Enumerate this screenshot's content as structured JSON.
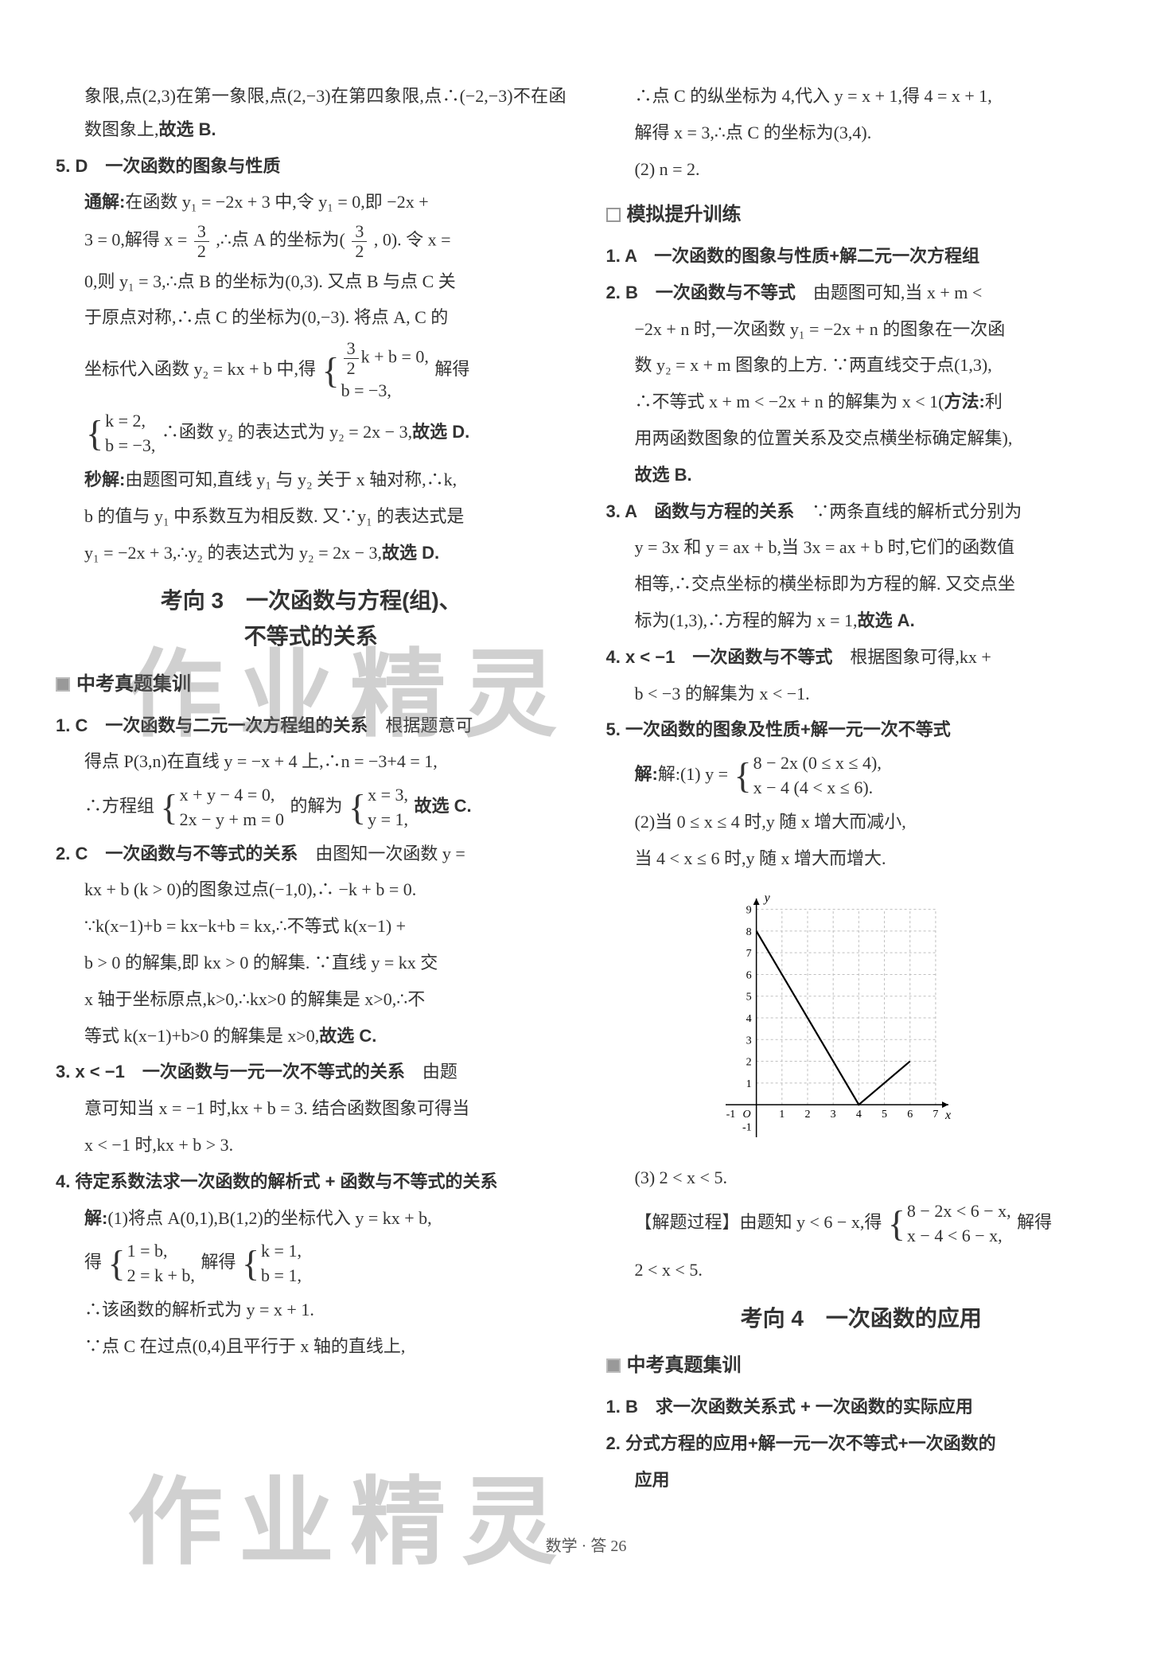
{
  "left": {
    "p1": "象限,点(2,3)在第一象限,点(2,−3)在第四象限,点∴(−2,−3)不在函数图象上,",
    "p1b": "故选 B.",
    "q5_head": "5. D　一次函数的图象与性质",
    "q5_a": "通解:在函数 y₁ = −2x + 3 中,令 y₁ = 0,即 −2x +",
    "q5_b_pre": "3 = 0,解得 x = ",
    "frac_3_2_a_num": "3",
    "frac_3_2_a_den": "2",
    "q5_b_mid": ",∴点 A 的坐标为(",
    "frac_3_2_b_num": "3",
    "frac_3_2_b_den": "2",
    "q5_b_post": ", 0). 令 x =",
    "q5_c": "0,则 y₁ = 3,∴点 B 的坐标为(0,3). 又点 B 与点 C 关",
    "q5_d": "于原点对称,∴点 C 的坐标为(0,−3). 将点 A, C 的",
    "q5_e_pre": "坐标代入函数 y₂ = kx + b 中,得",
    "sys1_l1_pre": "",
    "sys1_l1_frac_num": "3",
    "sys1_l1_frac_den": "2",
    "sys1_l1_post": "k + b = 0,",
    "sys1_l2": "b = −3,",
    "q5_e_post": "解得",
    "sys2_l1": "k = 2,",
    "sys2_l2": "b = −3,",
    "q5_f": "∴函数 y₂ 的表达式为 y₂ = 2x − 3,",
    "q5_f_bold": "故选 D.",
    "q5_g": "秒解:由题图可知,直线 y₁ 与 y₂ 关于 x 轴对称,∴k,",
    "q5_h": "b 的值与 y₁ 中系数互为相反数. 又∵y₁ 的表达式是",
    "q5_i": "y₁ = −2x + 3,∴y₂ 的表达式为 y₂ = 2x − 3,",
    "q5_i_bold": "故选 D.",
    "kx3_title_l1": "考向 3　一次函数与方程(组)、",
    "kx3_title_l2": "不等式的关系",
    "sec_zj": "中考真题集训",
    "z1_head": "1. C　一次函数与二元一次方程组的关系",
    "z1_a": "根据题意可",
    "z1_b": "得点 P(3,n)在直线 y = −x + 4 上,∴n = −3+4 = 1,",
    "z1_c_pre": "∴方程组",
    "z1_sys_l1": "x + y − 4 = 0,",
    "z1_sys_l2": "2x − y + m = 0",
    "z1_c_mid": "的解为",
    "z1_sys2_l1": "x = 3,",
    "z1_sys2_l2": "y = 1,",
    "z1_c_bold": "故选 C.",
    "z2_head": "2. C　一次函数与不等式的关系",
    "z2_a": "由图知一次函数 y =",
    "z2_b": "kx + b (k > 0)的图象过点(−1,0),∴ −k + b = 0.",
    "z2_c": "∵k(x−1)+b = kx−k+b = kx,∴不等式 k(x−1) +",
    "z2_d": "b > 0 的解集,即 kx > 0 的解集. ∵直线 y = kx 交",
    "z2_e": "x 轴于坐标原点,k>0,∴kx>0 的解集是 x>0,∴不",
    "z2_f": "等式 k(x−1)+b>0 的解集是 x>0,",
    "z2_f_bold": "故选 C.",
    "z3_head": "3. x < −1　一次函数与一元一次不等式的关系",
    "z3_a": "由题",
    "z3_b": "意可知当 x = −1 时,kx + b = 3. 结合函数图象可得当",
    "z3_c": "x < −1 时,kx + b > 3.",
    "z4_head": "4. 待定系数法求一次函数的解析式 + 函数与不等式的关系",
    "z4_a": "解:(1)将点 A(0,1),B(1,2)的坐标代入 y = kx + b,",
    "z4_b_pre": "得",
    "z4_sys_l1": "1 = b,",
    "z4_sys_l2": "2 = k + b,",
    "z4_b_mid": "解得",
    "z4_sys2_l1": "k = 1,",
    "z4_sys2_l2": "b = 1,",
    "z4_c": "∴该函数的解析式为 y = x + 1.",
    "z4_d": "∵点 C 在过点(0,4)且平行于 x 轴的直线上,"
  },
  "right": {
    "r1": "∴点 C 的纵坐标为 4,代入 y = x + 1,得 4 = x + 1,",
    "r2": "解得 x = 3,∴点 C 的坐标为(3,4).",
    "r3": "(2) n = 2.",
    "sec_mn": "模拟提升训练",
    "m1_head": "1. A　一次函数的图象与性质+解二元一次方程组",
    "m2_head": "2. B　一次函数与不等式",
    "m2_a": "由题图可知,当 x + m <",
    "m2_b": "−2x + n 时,一次函数 y₁ = −2x + n 的图象在一次函",
    "m2_c": "数 y₂ = x + m 图象的上方. ∵两直线交于点(1,3),",
    "m2_d": "∴不等式 x + m < −2x + n 的解集为 x < 1(",
    "m2_d_bold": "方法:",
    "m2_d2": "利",
    "m2_e": "用两函数图象的位置关系及交点横坐标确定解集),",
    "m2_f_bold": "故选 B.",
    "m3_head": "3. A　函数与方程的关系",
    "m3_a": "∵两条直线的解析式分别为",
    "m3_b": "y = 3x 和 y = ax + b,当 3x = ax + b 时,它们的函数值",
    "m3_c": "相等,∴交点坐标的横坐标即为方程的解. 又交点坐",
    "m3_d": "标为(1,3),∴方程的解为 x = 1,",
    "m3_d_bold": "故选 A.",
    "m4_head": "4. x < −1　一次函数与不等式",
    "m4_a": "根据图象可得,kx +",
    "m4_b": "b < −3 的解集为 x < −1.",
    "m5_head": "5. 一次函数的图象及性质+解一元一次不等式",
    "m5_a_pre": "解:(1) y =",
    "m5_sys_l1": "8 − 2x (0 ≤ x ≤ 4),",
    "m5_sys_l2": "x − 4 (4 < x ≤ 6).",
    "m5_b": "(2)当 0 ≤ x ≤ 4 时,y 随 x 增大而减小,",
    "m5_c": "当 4 < x ≤ 6 时,y 随 x 增大而增大.",
    "chart": {
      "type": "line",
      "x_ticks": [
        -1,
        0,
        1,
        2,
        3,
        4,
        5,
        6,
        7
      ],
      "y_ticks": [
        -1,
        0,
        1,
        2,
        3,
        4,
        5,
        6,
        7,
        8,
        9
      ],
      "xlim": [
        -1.2,
        7.5
      ],
      "ylim": [
        -1.5,
        9.5
      ],
      "grid_color": "#bfbfbf",
      "axis_color": "#000000",
      "line_color": "#000000",
      "line_width": 2.2,
      "background": "#ffffff",
      "tick_fontsize": 14,
      "label_y": "y",
      "label_x": "x",
      "origin_label": "O",
      "points": [
        [
          0,
          8
        ],
        [
          4,
          0
        ],
        [
          6,
          2
        ]
      ]
    },
    "m5_d": "(3) 2 < x < 5.",
    "m5_e_pre": "【解题过程】由题知 y < 6 − x,得",
    "m5_sys2_l1": "8 − 2x < 6 − x,",
    "m5_sys2_l2": "x − 4 < 6 − x,",
    "m5_e_post": "解得",
    "m5_f": "2 < x < 5.",
    "kx4_title": "考向 4　一次函数的应用",
    "sec_zj2": "中考真题集训",
    "k4_1": "1. B　求一次函数关系式 + 一次函数的实际应用",
    "k4_2a": "2. 分式方程的应用+解一元一次不等式+一次函数的",
    "k4_2b": "应用"
  },
  "footer": "数学 · 答 26",
  "watermarks": {
    "w1": "作业精灵",
    "w2": "作业精灵"
  },
  "colors": {
    "text": "#333333",
    "bold": "#000000",
    "grid": "#bfbfbf",
    "watermark": "rgba(120,120,120,0.35)"
  }
}
